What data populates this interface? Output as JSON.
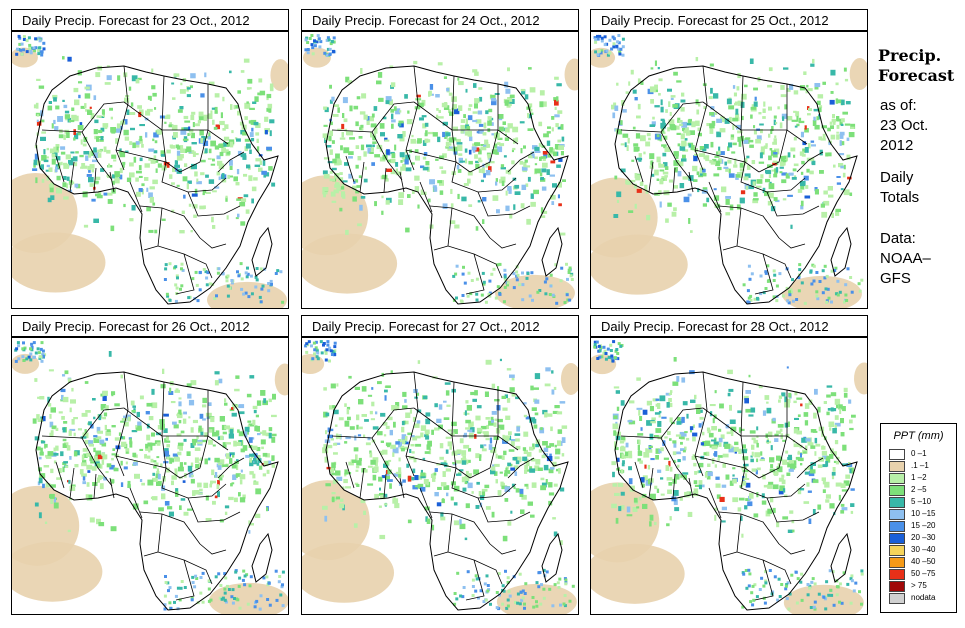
{
  "panels": [
    {
      "title": "Daily Precip. Forecast for  23 Oct., 2012"
    },
    {
      "title": "Daily Precip. Forecast for  24 Oct., 2012"
    },
    {
      "title": "Daily Precip. Forecast for  25 Oct., 2012"
    },
    {
      "title": "Daily Precip. Forecast for  26 Oct., 2012"
    },
    {
      "title": "Daily Precip. Forecast for  27 Oct., 2012"
    },
    {
      "title": "Daily Precip. Forecast for  28 Oct., 2012"
    }
  ],
  "sidebar": {
    "title_line1": "Precip.",
    "title_line2": "Forecast",
    "asof_line1": "as of:",
    "asof_line2": "23 Oct.",
    "asof_line3": "2012",
    "daily_line1": "Daily",
    "daily_line2": "Totals",
    "data_line1": "Data:",
    "data_line2": "NOAA–",
    "data_line3": "GFS"
  },
  "legend": {
    "title": "PPT (mm)",
    "items": [
      {
        "label": "0 –1",
        "color": "#ffffff"
      },
      {
        "label": ".1 –1",
        "color": "#e8d2ad"
      },
      {
        "label": "1 –2",
        "color": "#b8f0a8"
      },
      {
        "label": "2 –5",
        "color": "#7de07a"
      },
      {
        "label": "5 –10",
        "color": "#38b8a8"
      },
      {
        "label": "10 –15",
        "color": "#8ec0f0"
      },
      {
        "label": "15 –20",
        "color": "#4a90e8"
      },
      {
        "label": "20 –30",
        "color": "#1a5fd8"
      },
      {
        "label": "30 –40",
        "color": "#f5d35a"
      },
      {
        "label": "40 –50",
        "color": "#f59a18"
      },
      {
        "label": "50 –75",
        "color": "#e83018"
      },
      {
        "label": "> 75",
        "color": "#a00808"
      },
      {
        "label": "nodata",
        "color": "#d0d0d0"
      }
    ]
  }
}
